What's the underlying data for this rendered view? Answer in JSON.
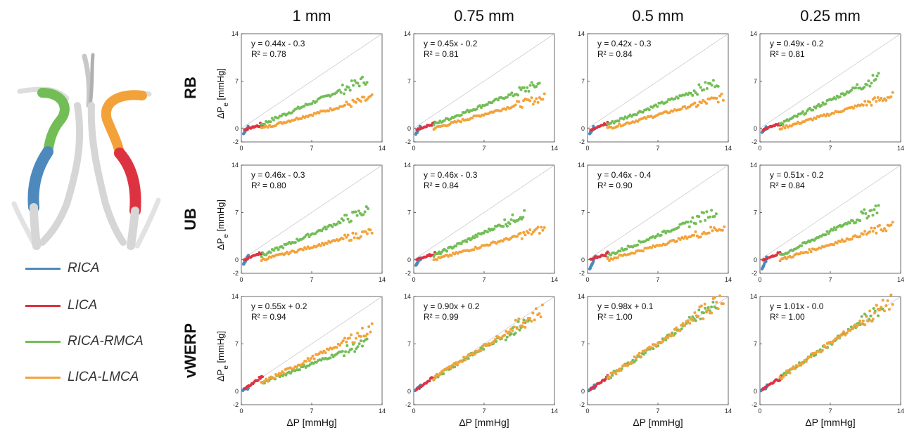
{
  "columns": [
    "1 mm",
    "0.75 mm",
    "0.5 mm",
    "0.25 mm"
  ],
  "rows": [
    "RB",
    "UB",
    "vWERP"
  ],
  "ylabel_main": "ΔP",
  "ylabel_sub": "e",
  "ylabel_unit": "[mmHg]",
  "xlabel": "ΔP [mmHg]",
  "legend": [
    {
      "name": "RICA",
      "color": "#4e89bd"
    },
    {
      "name": "LICA",
      "color": "#dd3341"
    },
    {
      "name": "RICA-RMCA",
      "color": "#73bd57"
    },
    {
      "name": "LICA-LMCA",
      "color": "#f3a23a"
    }
  ],
  "colors": {
    "RICA": "#4e89bd",
    "LICA": "#dd3341",
    "RICA-RMCA": "#73bd57",
    "LICA-LMCA": "#f3a23a",
    "identity": "#cccccc",
    "vessel": "#dddddd"
  },
  "chart_data": {
    "type": "scatter",
    "axes": {
      "xlim": [
        0,
        14
      ],
      "ylim": [
        -2,
        14
      ],
      "xticks": [
        0,
        7,
        14
      ],
      "yticks": [
        -2,
        0,
        7,
        14
      ]
    },
    "identity_line": true,
    "panels": [
      {
        "row": "RB",
        "column": "1 mm",
        "equation": "y = 0.44x - 0.3",
        "r2": "R² = 0.78",
        "series": [
          {
            "name": "RICA",
            "x_range": [
              0.2,
              0.7
            ],
            "y_range": [
              -0.8,
              0.3
            ]
          },
          {
            "name": "LICA",
            "x_range": [
              0.3,
              2.1
            ],
            "y_range": [
              -0.2,
              0.6
            ]
          },
          {
            "name": "RICA-RMCA",
            "x_range": [
              2.0,
              12.5
            ],
            "y_range": [
              0.6,
              7.3
            ]
          },
          {
            "name": "LICA-LMCA",
            "x_range": [
              2.0,
              13.0
            ],
            "y_range": [
              0.0,
              4.5
            ]
          }
        ]
      },
      {
        "row": "RB",
        "column": "0.75 mm",
        "equation": "y = 0.45x - 0.2",
        "r2": "R² = 0.81",
        "series": [
          {
            "name": "RICA",
            "x_range": [
              0.2,
              0.7
            ],
            "y_range": [
              -0.9,
              0.3
            ]
          },
          {
            "name": "LICA",
            "x_range": [
              0.3,
              2.1
            ],
            "y_range": [
              -0.2,
              0.8
            ]
          },
          {
            "name": "RICA-RMCA",
            "x_range": [
              2.0,
              12.5
            ],
            "y_range": [
              0.6,
              6.6
            ]
          },
          {
            "name": "LICA-LMCA",
            "x_range": [
              2.0,
              13.0
            ],
            "y_range": [
              0.0,
              4.6
            ]
          }
        ]
      },
      {
        "row": "RB",
        "column": "0.5 mm",
        "equation": "y = 0.42x - 0.3",
        "r2": "R² = 0.84",
        "series": [
          {
            "name": "RICA",
            "x_range": [
              0.2,
              0.7
            ],
            "y_range": [
              -0.8,
              0.3
            ]
          },
          {
            "name": "LICA",
            "x_range": [
              0.3,
              2.1
            ],
            "y_range": [
              -0.2,
              0.8
            ]
          },
          {
            "name": "RICA-RMCA",
            "x_range": [
              2.0,
              13.0
            ],
            "y_range": [
              0.6,
              6.9
            ]
          },
          {
            "name": "LICA-LMCA",
            "x_range": [
              2.0,
              13.5
            ],
            "y_range": [
              0.0,
              4.6
            ]
          }
        ]
      },
      {
        "row": "RB",
        "column": "0.25 mm",
        "equation": "y = 0.49x - 0.2",
        "r2": "R² = 0.81",
        "series": [
          {
            "name": "RICA",
            "x_range": [
              0.2,
              0.7
            ],
            "y_range": [
              -0.6,
              0.3
            ]
          },
          {
            "name": "LICA",
            "x_range": [
              0.3,
              2.1
            ],
            "y_range": [
              -0.2,
              0.8
            ]
          },
          {
            "name": "RICA-RMCA",
            "x_range": [
              2.0,
              11.8
            ],
            "y_range": [
              0.6,
              7.6
            ]
          },
          {
            "name": "LICA-LMCA",
            "x_range": [
              2.0,
              13.2
            ],
            "y_range": [
              0.0,
              4.8
            ]
          }
        ]
      },
      {
        "row": "UB",
        "column": "1 mm",
        "equation": "y = 0.46x - 0.3",
        "r2": "R² = 0.80",
        "series": [
          {
            "name": "RICA",
            "x_range": [
              0.2,
              0.7
            ],
            "y_range": [
              -0.7,
              0.6
            ]
          },
          {
            "name": "LICA",
            "x_range": [
              0.3,
              2.1
            ],
            "y_range": [
              0.0,
              1.2
            ]
          },
          {
            "name": "RICA-RMCA",
            "x_range": [
              2.0,
              12.6
            ],
            "y_range": [
              0.6,
              7.4
            ]
          },
          {
            "name": "LICA-LMCA",
            "x_range": [
              2.0,
              13.0
            ],
            "y_range": [
              0.0,
              4.2
            ]
          }
        ]
      },
      {
        "row": "UB",
        "column": "0.75 mm",
        "equation": "y = 0.46x - 0.3",
        "r2": "R² = 0.84",
        "series": [
          {
            "name": "RICA",
            "x_range": [
              0.2,
              0.7
            ],
            "y_range": [
              -0.9,
              0.4
            ]
          },
          {
            "name": "LICA",
            "x_range": [
              0.3,
              2.1
            ],
            "y_range": [
              0.0,
              1.0
            ]
          },
          {
            "name": "RICA-RMCA",
            "x_range": [
              2.0,
              11.0
            ],
            "y_range": [
              0.6,
              6.8
            ]
          },
          {
            "name": "LICA-LMCA",
            "x_range": [
              2.0,
              13.0
            ],
            "y_range": [
              0.0,
              4.6
            ]
          }
        ]
      },
      {
        "row": "UB",
        "column": "0.5 mm",
        "equation": "y = 0.46x - 0.4",
        "r2": "R² = 0.90",
        "series": [
          {
            "name": "RICA",
            "x_range": [
              0.2,
              0.8
            ],
            "y_range": [
              -1.4,
              0.5
            ]
          },
          {
            "name": "LICA",
            "x_range": [
              0.3,
              2.1
            ],
            "y_range": [
              0.0,
              1.0
            ]
          },
          {
            "name": "RICA-RMCA",
            "x_range": [
              2.0,
              12.8
            ],
            "y_range": [
              0.6,
              7.2
            ]
          },
          {
            "name": "LICA-LMCA",
            "x_range": [
              2.0,
              13.6
            ],
            "y_range": [
              0.0,
              4.9
            ]
          }
        ]
      },
      {
        "row": "UB",
        "column": "0.25 mm",
        "equation": "y = 0.51x - 0.2",
        "r2": "R² = 0.84",
        "series": [
          {
            "name": "RICA",
            "x_range": [
              0.2,
              0.7
            ],
            "y_range": [
              -1.4,
              0.3
            ]
          },
          {
            "name": "LICA",
            "x_range": [
              0.3,
              2.1
            ],
            "y_range": [
              0.0,
              1.0
            ]
          },
          {
            "name": "RICA-RMCA",
            "x_range": [
              2.0,
              11.8
            ],
            "y_range": [
              0.6,
              7.7
            ]
          },
          {
            "name": "LICA-LMCA",
            "x_range": [
              2.0,
              13.2
            ],
            "y_range": [
              0.0,
              5.1
            ]
          }
        ]
      },
      {
        "row": "vWERP",
        "column": "1 mm",
        "equation": "y = 0.55x + 0.2",
        "r2": "R² = 0.94",
        "series": [
          {
            "name": "RICA",
            "x_range": [
              0.1,
              0.7
            ],
            "y_range": [
              0.1,
              0.6
            ]
          },
          {
            "name": "LICA",
            "x_range": [
              0.3,
              2.1
            ],
            "y_range": [
              0.3,
              2.2
            ]
          },
          {
            "name": "RICA-RMCA",
            "x_range": [
              2.0,
              12.5
            ],
            "y_range": [
              1.2,
              7.2
            ]
          },
          {
            "name": "LICA-LMCA",
            "x_range": [
              2.0,
              13.0
            ],
            "y_range": [
              1.2,
              9.3
            ]
          }
        ]
      },
      {
        "row": "vWERP",
        "column": "0.75 mm",
        "equation": "y = 0.90x + 0.2",
        "r2": "R² = 0.99",
        "series": [
          {
            "name": "RICA",
            "x_range": [
              0.1,
              0.7
            ],
            "y_range": [
              0.1,
              0.8
            ]
          },
          {
            "name": "LICA",
            "x_range": [
              0.3,
              2.1
            ],
            "y_range": [
              0.3,
              2.0
            ]
          },
          {
            "name": "RICA-RMCA",
            "x_range": [
              2.0,
              11.5
            ],
            "y_range": [
              2.0,
              10.5
            ]
          },
          {
            "name": "LICA-LMCA",
            "x_range": [
              2.0,
              12.8
            ],
            "y_range": [
              2.0,
              12.0
            ]
          }
        ]
      },
      {
        "row": "vWERP",
        "column": "0.5 mm",
        "equation": "y = 0.98x + 0.1",
        "r2": "R² = 1.00",
        "series": [
          {
            "name": "RICA",
            "x_range": [
              0.1,
              0.7
            ],
            "y_range": [
              0.1,
              0.7
            ]
          },
          {
            "name": "LICA",
            "x_range": [
              0.3,
              2.1
            ],
            "y_range": [
              0.3,
              2.2
            ]
          },
          {
            "name": "RICA-RMCA",
            "x_range": [
              2.0,
              12.8
            ],
            "y_range": [
              2.0,
              12.8
            ]
          },
          {
            "name": "LICA-LMCA",
            "x_range": [
              2.0,
              13.5
            ],
            "y_range": [
              2.0,
              13.8
            ]
          }
        ]
      },
      {
        "row": "vWERP",
        "column": "0.25 mm",
        "equation": "y = 1.01x - 0.0",
        "r2": "R² = 1.00",
        "series": [
          {
            "name": "RICA",
            "x_range": [
              0.1,
              0.7
            ],
            "y_range": [
              0.1,
              0.7
            ]
          },
          {
            "name": "LICA",
            "x_range": [
              0.3,
              2.1
            ],
            "y_range": [
              0.3,
              2.1
            ]
          },
          {
            "name": "RICA-RMCA",
            "x_range": [
              2.0,
              12.2
            ],
            "y_range": [
              2.0,
              12.3
            ]
          },
          {
            "name": "LICA-LMCA",
            "x_range": [
              2.0,
              13.2
            ],
            "y_range": [
              2.0,
              13.4
            ]
          }
        ]
      }
    ]
  }
}
